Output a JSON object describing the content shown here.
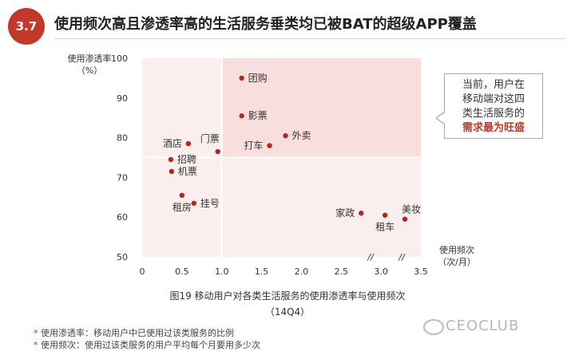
{
  "header": {
    "section_number": "3.7",
    "title": "使用频次高且渗透率高的生活服务垂类均已被BAT的超级APP覆盖"
  },
  "callout": {
    "line1": "当前，用户在",
    "line2": "移动端对这四",
    "line3": "类生活服务的",
    "highlight": "需求最为旺盛"
  },
  "caption": {
    "line1": "图19 移动用户对各类生活服务的使用渗透率与使用频次",
    "line2": "（14Q4）"
  },
  "notes": {
    "note1": "使用渗透率：移动用户中已使用过该类服务的比例",
    "note2": "使用频次：使用过该类服务的用户平均每个月要用多少次",
    "marker": "*"
  },
  "logo": {
    "text": "CEOCLUB",
    "icon": "wechat-icon"
  },
  "colors": {
    "accent": "#c0392b",
    "highlight_quadrant": "#f9dede",
    "quadrant": "#fbeeee",
    "dot": "#b5261e"
  },
  "chart_data": {
    "type": "scatter",
    "title": "图19 移动用户对各类生活服务的使用渗透率与使用频次",
    "ylabel_line1": "使用渗透率",
    "ylabel_line2": "（%）",
    "xlabel_line1": "使用频次",
    "xlabel_line2": "（次/月）",
    "xlim": [
      0,
      3.5
    ],
    "ylim": [
      50,
      100
    ],
    "x_ticks": [
      {
        "value": 0,
        "label": "0"
      },
      {
        "value": 0.5,
        "label": "0.5"
      },
      {
        "value": 1.0,
        "label": "1.0"
      },
      {
        "value": 1.5,
        "label": "1.5"
      },
      {
        "value": 2.0,
        "label": "2.0"
      },
      {
        "value": 2.5,
        "label": "2.5"
      },
      {
        "value": 3.0,
        "label": "3.0"
      },
      {
        "value": 3.5,
        "label": "3.5"
      }
    ],
    "y_ticks": [
      {
        "value": 50,
        "label": "50"
      },
      {
        "value": 60,
        "label": "60"
      },
      {
        "value": 70,
        "label": "70"
      },
      {
        "value": 80,
        "label": "80"
      },
      {
        "value": 90,
        "label": "90"
      },
      {
        "value": 100,
        "label": "100"
      }
    ],
    "axis_break_marks": [
      "//",
      "//"
    ],
    "quadrant_split": {
      "x": 1.0,
      "y": 75
    },
    "points": [
      {
        "label": "团购",
        "x": 1.25,
        "y": 95,
        "label_side": "right"
      },
      {
        "label": "影票",
        "x": 1.25,
        "y": 85.5,
        "label_side": "right"
      },
      {
        "label": "外卖",
        "x": 1.8,
        "y": 80.5,
        "label_side": "right"
      },
      {
        "label": "打车",
        "x": 1.6,
        "y": 78,
        "label_side": "left"
      },
      {
        "label": "门票",
        "x": 0.95,
        "y": 76.5,
        "label_side": "above"
      },
      {
        "label": "酒店",
        "x": 0.58,
        "y": 78.5,
        "label_side": "left"
      },
      {
        "label": "招聘",
        "x": 0.36,
        "y": 74.5,
        "label_side": "right"
      },
      {
        "label": "机票",
        "x": 0.37,
        "y": 71.5,
        "label_side": "right"
      },
      {
        "label": "租房",
        "x": 0.5,
        "y": 65.5,
        "label_side": "below"
      },
      {
        "label": "挂号",
        "x": 0.65,
        "y": 63.5,
        "label_side": "right"
      },
      {
        "label": "家政",
        "x": 2.75,
        "y": 61,
        "label_side": "left"
      },
      {
        "label": "租车",
        "x": 3.05,
        "y": 60.5,
        "label_side": "below"
      },
      {
        "label": "美妆",
        "x": 3.3,
        "y": 59.5,
        "label_side": "above-right"
      }
    ]
  }
}
